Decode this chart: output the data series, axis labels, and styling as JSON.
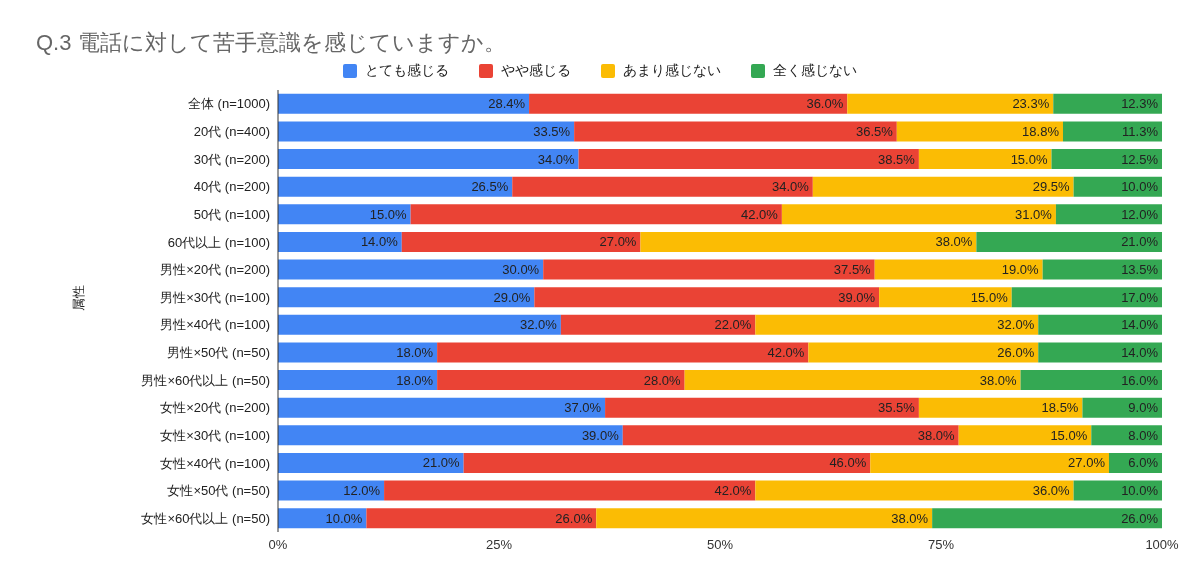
{
  "chart_data": {
    "type": "bar",
    "orientation": "horizontal",
    "stacked": true,
    "title": "Q.3 電話に対して苦手意識を感じていますか。",
    "ylabel": "属性",
    "legend": "top",
    "categories": [
      "全体 (n=1000)",
      "20代 (n=400)",
      "30代 (n=200)",
      "40代 (n=200)",
      "50代 (n=100)",
      "60代以上 (n=100)",
      "男性×20代 (n=200)",
      "男性×30代 (n=100)",
      "男性×40代 (n=100)",
      "男性×50代 (n=50)",
      "男性×60代以上 (n=50)",
      "女性×20代 (n=200)",
      "女性×30代 (n=100)",
      "女性×40代 (n=100)",
      "女性×50代 (n=50)",
      "女性×60代以上 (n=50)"
    ],
    "xlim": [
      0,
      100
    ],
    "xticks": [
      {
        "value": 0,
        "label": "0%"
      },
      {
        "value": 25,
        "label": "25%"
      },
      {
        "value": 50,
        "label": "50%"
      },
      {
        "value": 75,
        "label": "75%"
      },
      {
        "value": 100,
        "label": "100%"
      }
    ],
    "series": [
      {
        "name": "とても感じる",
        "color": "#4285f4",
        "values": [
          28.4,
          33.5,
          34,
          26.5,
          15,
          14,
          30,
          29,
          32,
          18,
          18,
          37,
          39,
          21,
          12,
          10
        ],
        "value_labels": [
          "28.4%",
          "33.5%",
          "34.0%",
          "26.5%",
          "15.0%",
          "14.0%",
          "30.0%",
          "29.0%",
          "32.0%",
          "18.0%",
          "18.0%",
          "37.0%",
          "39.0%",
          "21.0%",
          "12.0%",
          "10.0%"
        ]
      },
      {
        "name": "やや感じる",
        "color": "#ea4335",
        "values": [
          36,
          36.5,
          38.5,
          34,
          42,
          27,
          37.5,
          39,
          22,
          42,
          28,
          35.5,
          38,
          46,
          42,
          26
        ],
        "value_labels": [
          "36.0%",
          "36.5%",
          "38.5%",
          "34.0%",
          "42.0%",
          "27.0%",
          "37.5%",
          "39.0%",
          "22.0%",
          "42.0%",
          "28.0%",
          "35.5%",
          "38.0%",
          "46.0%",
          "42.0%",
          "26.0%"
        ]
      },
      {
        "name": "あまり感じない",
        "color": "#fbbc04",
        "values": [
          23.3,
          18.8,
          15,
          29.5,
          31,
          38,
          19,
          15,
          32,
          26,
          38,
          18.5,
          15,
          27,
          36,
          38
        ],
        "value_labels": [
          "23.3%",
          "18.8%",
          "15.0%",
          "29.5%",
          "31.0%",
          "38.0%",
          "19.0%",
          "15.0%",
          "32.0%",
          "26.0%",
          "38.0%",
          "18.5%",
          "15.0%",
          "27.0%",
          "36.0%",
          "38.0%"
        ]
      },
      {
        "name": "全く感じない",
        "color": "#34a853",
        "values": [
          12.3,
          11.3,
          12.5,
          10,
          12,
          21,
          13.5,
          17,
          14,
          14,
          16,
          9,
          8,
          6,
          10,
          26
        ],
        "value_labels": [
          "12.3%",
          "11.3%",
          "12.5%",
          "10.0%",
          "12.0%",
          "21.0%",
          "13.5%",
          "17.0%",
          "14.0%",
          "14.0%",
          "16.0%",
          "9.0%",
          "8.0%",
          "6.0%",
          "10.0%",
          "26.0%"
        ]
      }
    ]
  }
}
